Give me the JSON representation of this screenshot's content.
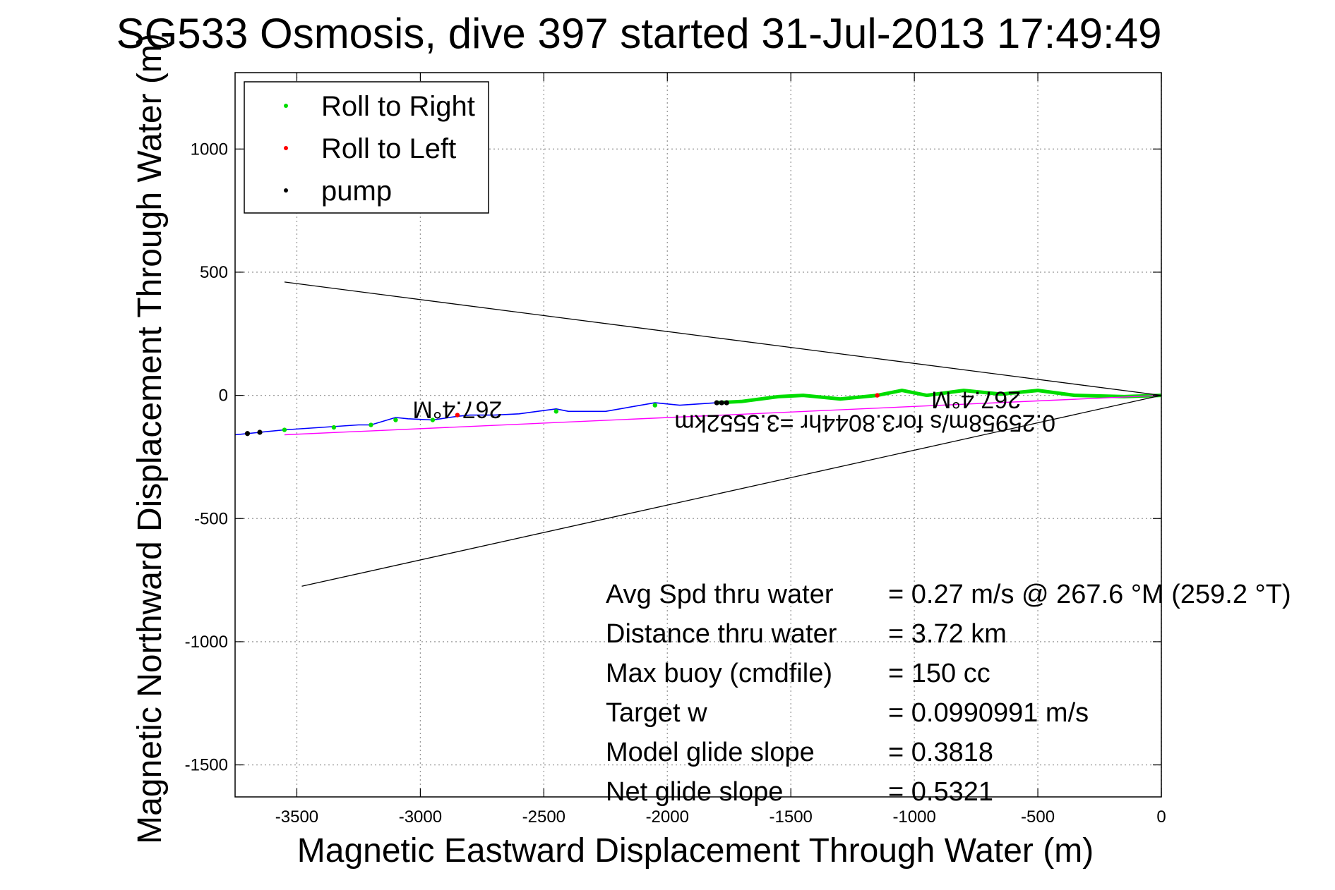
{
  "chart_data": {
    "type": "line",
    "title": "SG533 Osmosis, dive 397 started 31-Jul-2013 17:49:49",
    "xlabel": "Magnetic Eastward Displacement Through Water (m)",
    "ylabel": "Magnetic Northward Displacement Through Water (m)",
    "xlim": [
      -3750,
      0
    ],
    "ylim": [
      -1630,
      1310
    ],
    "x_ticks": [
      -3500,
      -3000,
      -2500,
      -2000,
      -1500,
      -1000,
      -500,
      0
    ],
    "y_ticks": [
      -1500,
      -1000,
      -500,
      0,
      500,
      1000
    ],
    "grid": true,
    "legend": {
      "position": "top-left",
      "entries": [
        {
          "label": "Roll to Right",
          "color": "#00dd00"
        },
        {
          "label": "Roll to Left",
          "color": "#ff0000"
        },
        {
          "label": "pump",
          "color": "#000000"
        }
      ]
    },
    "series": [
      {
        "color": "#0000ff",
        "x": [
          0,
          -150,
          -350,
          -500,
          -650,
          -800,
          -950,
          -1050,
          -1150,
          -1300,
          -1450,
          -1550,
          -1700,
          -1800,
          -1950,
          -2050,
          -2250,
          -2400,
          -2450,
          -2600,
          -2700,
          -2800,
          -2850,
          -2950,
          -3050,
          -3100,
          -3200,
          -3250,
          -3400,
          -3550,
          -3650,
          -3700,
          -3750
        ],
        "y": [
          0,
          -5,
          0,
          20,
          5,
          20,
          0,
          20,
          0,
          -15,
          0,
          -5,
          -25,
          -30,
          -40,
          -30,
          -65,
          -65,
          -55,
          -75,
          -80,
          -80,
          -85,
          -100,
          -95,
          -90,
          -120,
          -120,
          -130,
          -140,
          -150,
          -155,
          -160
        ]
      },
      {
        "color": "#00dd00",
        "x": [
          0,
          -150,
          -350,
          -500,
          -650,
          -800,
          -950,
          -1050,
          -1150,
          -1300,
          -1450,
          -1550,
          -1700,
          -1800
        ],
        "y": [
          0,
          -5,
          0,
          20,
          5,
          20,
          0,
          20,
          0,
          -15,
          0,
          -5,
          -25,
          -30
        ]
      },
      {
        "color": "#ff00ff",
        "x": [
          0,
          -3550
        ],
        "y": [
          0,
          -160
        ]
      },
      {
        "color": "#000000",
        "x": [
          -3550,
          0,
          -3480
        ],
        "y": [
          460,
          0,
          -775
        ]
      }
    ],
    "markers": {
      "roll_left": {
        "color": "#ff0000",
        "x": [
          -3650,
          -2850,
          -1150
        ],
        "y": [
          -150,
          -80,
          0
        ]
      },
      "roll_right": {
        "color": "#00dd00",
        "x": [
          -3550,
          -3350,
          -3200,
          -3100,
          -2950,
          -2450,
          -2050
        ],
        "y": [
          -140,
          -130,
          -120,
          -100,
          -100,
          -65,
          -40
        ]
      },
      "pump": {
        "color": "#000000",
        "x": [
          -3700,
          -3650,
          -1800,
          -1780,
          -1760
        ],
        "y": [
          -155,
          -150,
          -30,
          -30,
          -30
        ]
      }
    },
    "annotations": [
      {
        "text": "267.4°M",
        "x": -2850,
        "y": -25,
        "rotation_deg": 180
      },
      {
        "text": "267.4°M",
        "x": -750,
        "y": 15,
        "rotation_deg": 180
      },
      {
        "text": "0.25958m/s for3.8044hr =3.5552km",
        "x": -1200,
        "y": -80,
        "rotation_deg": 180
      }
    ],
    "stats": [
      {
        "label": "Avg Spd thru water",
        "value": "=  0.27 m/s @ 267.6 °M (259.2 °T)"
      },
      {
        "label": "Distance thru water",
        "value": "=  3.72 km"
      },
      {
        "label": "Max buoy (cmdfile)",
        "value": "= 150 cc"
      },
      {
        "label": "Target w",
        "value": "= 0.0990991 m/s"
      },
      {
        "label": "Model glide slope",
        "value": "= 0.3818"
      },
      {
        "label": "Net glide slope",
        "value": "= 0.5321"
      }
    ]
  }
}
